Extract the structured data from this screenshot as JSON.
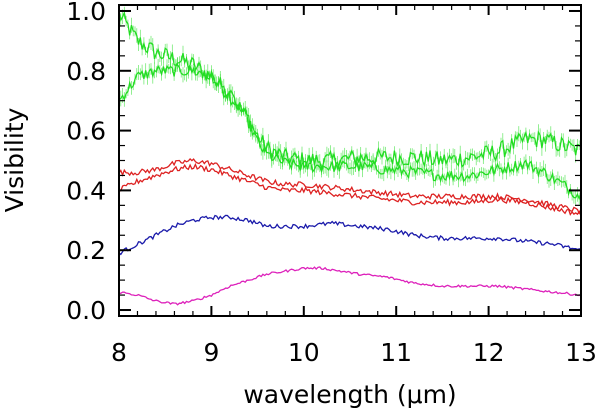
{
  "chart_data": {
    "type": "line",
    "title": "",
    "xlabel": "wavelength (μm)",
    "ylabel": "Visibility",
    "xlim": [
      8,
      13
    ],
    "ylim": [
      -0.02,
      1.02
    ],
    "xticks": [
      8,
      9,
      10,
      11,
      12,
      13
    ],
    "xtick_labels": [
      "8",
      "9",
      "10",
      "11",
      "12",
      "13"
    ],
    "yticks": [
      0.0,
      0.2,
      0.4,
      0.6,
      0.8,
      1.0
    ],
    "ytick_labels": [
      "0.0",
      "0.2",
      "0.4",
      "0.6",
      "0.8",
      "1.0"
    ],
    "grid": false,
    "series": [
      {
        "name": "green-upper",
        "color": "#22dd22",
        "noise": 0.03,
        "errorbars": true,
        "x": [
          8.0,
          8.2,
          8.4,
          8.6,
          8.8,
          9.0,
          9.2,
          9.4,
          9.5,
          9.6,
          9.8,
          10.0,
          10.3,
          10.6,
          10.9,
          11.2,
          11.5,
          11.8,
          12.1,
          12.4,
          12.6,
          12.8,
          13.0
        ],
        "y": [
          0.99,
          0.9,
          0.86,
          0.84,
          0.82,
          0.78,
          0.72,
          0.64,
          0.58,
          0.54,
          0.51,
          0.5,
          0.5,
          0.51,
          0.51,
          0.51,
          0.5,
          0.51,
          0.53,
          0.57,
          0.57,
          0.55,
          0.53
        ]
      },
      {
        "name": "green-lower",
        "color": "#22dd22",
        "noise": 0.02,
        "errorbars": true,
        "x": [
          8.0,
          8.2,
          8.4,
          8.6,
          8.8,
          9.0,
          9.2,
          9.4,
          9.5,
          9.6,
          9.8,
          10.0,
          10.3,
          10.6,
          10.9,
          11.2,
          11.5,
          11.8,
          12.1,
          12.4,
          12.6,
          12.8,
          13.0
        ],
        "y": [
          0.7,
          0.78,
          0.8,
          0.8,
          0.8,
          0.78,
          0.72,
          0.63,
          0.56,
          0.52,
          0.49,
          0.48,
          0.48,
          0.48,
          0.47,
          0.46,
          0.45,
          0.45,
          0.47,
          0.49,
          0.46,
          0.42,
          0.38
        ]
      },
      {
        "name": "red-upper",
        "color": "#dd2222",
        "noise": 0.009,
        "errorbars": false,
        "x": [
          8.0,
          8.2,
          8.4,
          8.6,
          8.8,
          9.0,
          9.2,
          9.4,
          9.6,
          9.8,
          10.0,
          10.3,
          10.6,
          10.9,
          11.2,
          11.5,
          11.8,
          12.1,
          12.4,
          12.7,
          13.0
        ],
        "y": [
          0.46,
          0.46,
          0.47,
          0.49,
          0.5,
          0.49,
          0.47,
          0.45,
          0.43,
          0.42,
          0.42,
          0.41,
          0.4,
          0.39,
          0.38,
          0.38,
          0.38,
          0.38,
          0.37,
          0.35,
          0.33
        ]
      },
      {
        "name": "red-lower",
        "color": "#dd2222",
        "noise": 0.009,
        "errorbars": false,
        "x": [
          8.0,
          8.2,
          8.4,
          8.6,
          8.8,
          9.0,
          9.2,
          9.4,
          9.6,
          9.8,
          10.0,
          10.3,
          10.6,
          10.9,
          11.2,
          11.5,
          11.8,
          12.1,
          12.4,
          12.7,
          13.0
        ],
        "y": [
          0.4,
          0.43,
          0.45,
          0.47,
          0.48,
          0.47,
          0.45,
          0.43,
          0.41,
          0.4,
          0.4,
          0.39,
          0.38,
          0.37,
          0.36,
          0.36,
          0.36,
          0.37,
          0.36,
          0.34,
          0.32
        ]
      },
      {
        "name": "blue",
        "color": "#1a1aaa",
        "noise": 0.007,
        "errorbars": false,
        "x": [
          8.0,
          8.2,
          8.4,
          8.6,
          8.8,
          9.0,
          9.2,
          9.4,
          9.6,
          9.8,
          10.0,
          10.3,
          10.6,
          10.9,
          11.2,
          11.5,
          11.8,
          12.1,
          12.4,
          12.7,
          13.0
        ],
        "y": [
          0.19,
          0.22,
          0.25,
          0.28,
          0.3,
          0.31,
          0.31,
          0.3,
          0.28,
          0.28,
          0.28,
          0.29,
          0.28,
          0.27,
          0.25,
          0.24,
          0.24,
          0.24,
          0.23,
          0.22,
          0.2
        ]
      },
      {
        "name": "magenta",
        "color": "#dd22bb",
        "noise": 0.004,
        "errorbars": false,
        "x": [
          8.0,
          8.2,
          8.4,
          8.6,
          8.8,
          9.0,
          9.2,
          9.4,
          9.6,
          9.8,
          10.0,
          10.2,
          10.4,
          10.6,
          10.9,
          11.2,
          11.5,
          11.8,
          12.1,
          12.4,
          12.7,
          13.0
        ],
        "y": [
          0.06,
          0.05,
          0.03,
          0.02,
          0.03,
          0.05,
          0.08,
          0.1,
          0.12,
          0.13,
          0.14,
          0.14,
          0.13,
          0.12,
          0.11,
          0.09,
          0.08,
          0.08,
          0.08,
          0.07,
          0.06,
          0.05
        ]
      }
    ]
  }
}
